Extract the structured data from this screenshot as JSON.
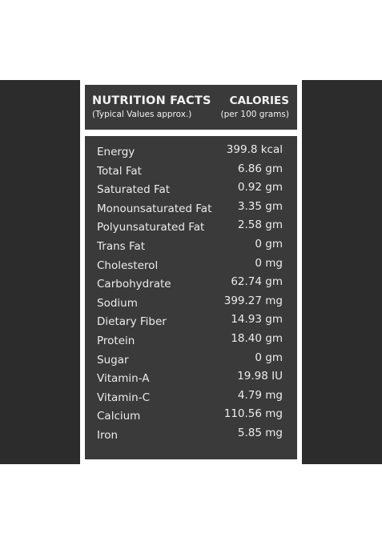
{
  "header": {
    "title": "NUTRITION FACTS",
    "subtitle": "(Typical Values approx.)",
    "calories_label": "CALORIES",
    "per_label": "(per 100 grams)"
  },
  "nutrients": [
    {
      "name": "Energy",
      "value": "399.8 kcal"
    },
    {
      "name": "Total Fat",
      "value": "6.86 gm"
    },
    {
      "name": "Saturated Fat",
      "value": "0.92 gm"
    },
    {
      "name": "Monounsaturated Fat",
      "value": "3.35 gm"
    },
    {
      "name": "Polyunsaturated Fat",
      "value": "2.58 gm"
    },
    {
      "name": "Trans Fat",
      "value": "0 gm"
    },
    {
      "name": "Cholesterol",
      "value": "0 mg"
    },
    {
      "name": "Carbohydrate",
      "value": "62.74 gm"
    },
    {
      "name": "Sodium",
      "value": "399.27 mg"
    },
    {
      "name": "Dietary Fiber",
      "value": "14.93 gm"
    },
    {
      "name": "Protein",
      "value": "18.40 gm"
    },
    {
      "name": "Sugar",
      "value": "0 gm"
    },
    {
      "name": "Vitamin-A",
      "value": "19.98 IU"
    },
    {
      "name": "Vitamin-C",
      "value": "4.79 mg"
    },
    {
      "name": "Calcium",
      "value": "110.56 mg"
    },
    {
      "name": "Iron",
      "value": "5.85 mg"
    }
  ],
  "colors": {
    "band": "#2c2c2c",
    "panel": "#3a3a3a",
    "text": "#ececec",
    "divider": "#ffffff"
  }
}
